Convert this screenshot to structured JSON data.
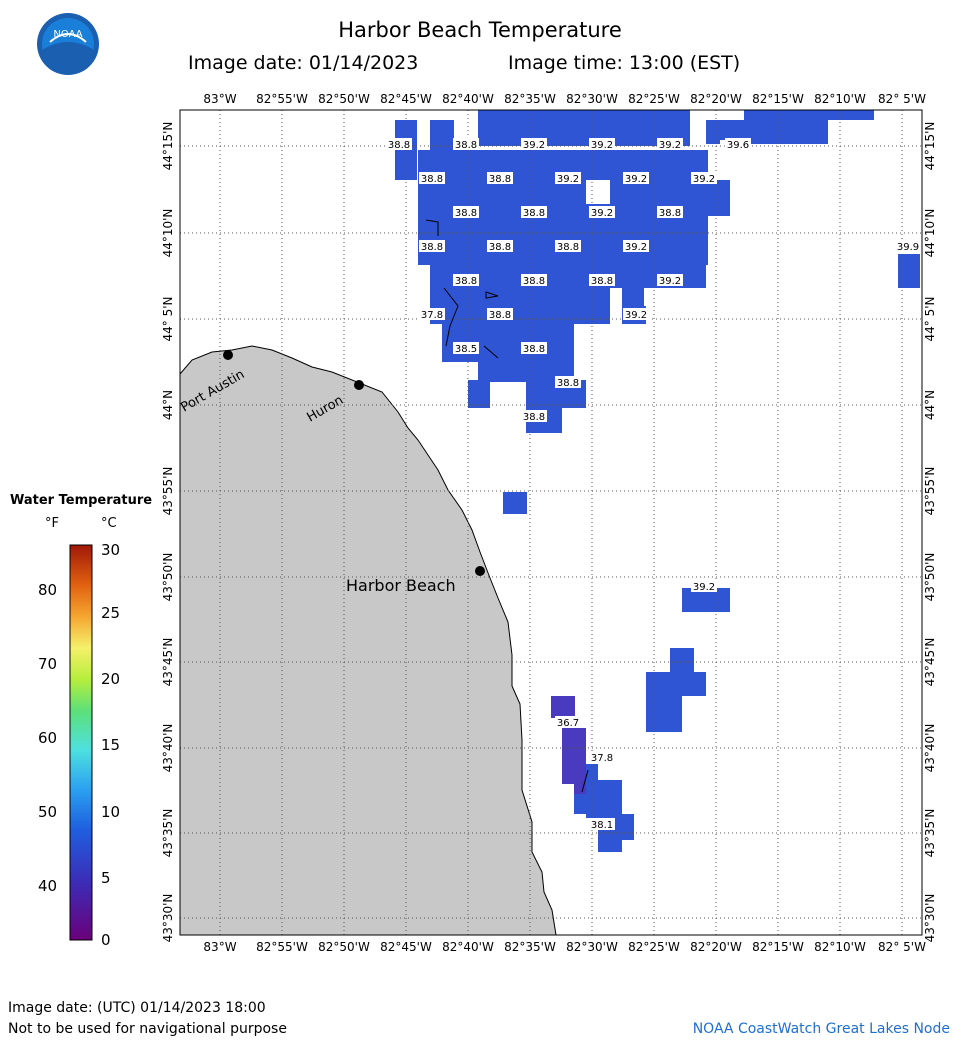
{
  "header": {
    "title": "Harbor Beach Temperature",
    "image_date_label": "Image date: 01/14/2023",
    "image_time_label": "Image time: 13:00 (EST)"
  },
  "logo": {
    "icon": "noaa-logo-icon",
    "text": "NOAA"
  },
  "legend": {
    "title": "Water Temperature",
    "unit_f": "°F",
    "unit_c": "°C",
    "f_ticks": [
      "80",
      "70",
      "60",
      "50",
      "40"
    ],
    "c_ticks": [
      "30",
      "25",
      "20",
      "15",
      "10",
      "5",
      "0"
    ]
  },
  "map": {
    "lon_labels": [
      "83°W",
      "82°55'W",
      "82°50'W",
      "82°45'W",
      "82°40'W",
      "82°35'W",
      "82°30'W",
      "82°25'W",
      "82°20'W",
      "82°15'W",
      "82°10'W",
      "82° 5'W"
    ],
    "lat_labels": [
      "44°15'N",
      "44°10'N",
      "44° 5'N",
      "44°N",
      "43°55'N",
      "43°50'N",
      "43°45'N",
      "43°40'N",
      "43°35'N",
      "43°30'N"
    ],
    "places": [
      "Port Austin",
      "Huron",
      "Harbor Beach"
    ],
    "temp_labels": [
      "38.8",
      "38.8",
      "39.2",
      "39.2",
      "39.2",
      "39.6",
      "38.8",
      "38.8",
      "39.2",
      "39.2",
      "39.2",
      "38.8",
      "38.8",
      "39.2",
      "38.8",
      "38.8",
      "38.8",
      "38.8",
      "39.2",
      "39.9",
      "38.8",
      "38.8",
      "38.8",
      "39.2",
      "37.8",
      "38.8",
      "39.2",
      "38.5",
      "38.8",
      "38.8",
      "38.8",
      "39.2",
      "36.7",
      "37.8",
      "38.1"
    ],
    "colors": {
      "water_temp": "#2f55d4",
      "water_cold": "#4a3ac0",
      "land": "#c8c8c8"
    }
  },
  "footer": {
    "utc_date": "Image date: (UTC) 01/14/2023  18:00",
    "disclaimer": "Not to be used for navigational purpose",
    "credit": "NOAA CoastWatch Great Lakes Node"
  }
}
